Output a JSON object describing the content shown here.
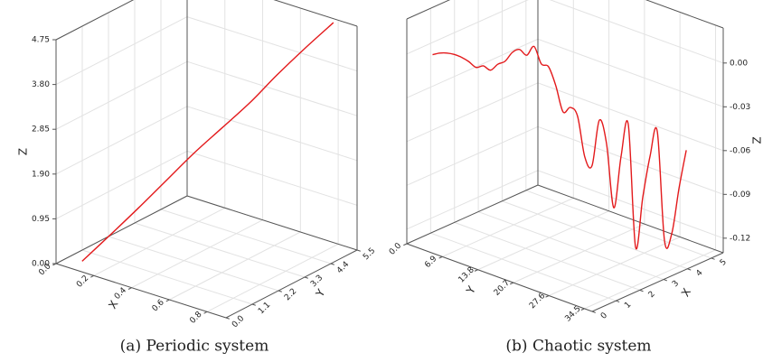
{
  "chart_data": [
    {
      "type": "line3d",
      "caption": "(a) Periodic system",
      "x_label": "X",
      "y_label": "Y",
      "z_label": "Z",
      "color": "#e31a1c",
      "grid": true,
      "x": [
        0.1,
        0.18,
        0.26,
        0.33,
        0.41,
        0.49,
        0.57,
        0.64,
        0.72,
        0.8
      ],
      "y": [
        0.3,
        0.86,
        1.41,
        1.97,
        2.52,
        3.08,
        3.63,
        4.19,
        4.74,
        5.3
      ],
      "z": [
        0.1,
        0.62,
        1.15,
        1.65,
        2.2,
        2.7,
        3.2,
        3.72,
        4.25,
        4.75
      ],
      "xlim": [
        0,
        0.9
      ],
      "xticks": [
        {
          "value": 0,
          "label": "0.0"
        },
        0.2,
        0.4,
        0.6,
        0.8
      ],
      "ylim": [
        0,
        5.5
      ],
      "yticks": [
        {
          "value": 0,
          "label": "0.0"
        },
        1.1,
        2.2,
        3.3,
        4.4,
        5.5
      ],
      "zlim": [
        0,
        4.75
      ],
      "zticks": [
        {
          "value": 0,
          "label": "0.00"
        },
        0.95,
        {
          "value": 1.9,
          "label": "1.90"
        },
        2.85,
        {
          "value": 3.8,
          "label": "3.80"
        },
        4.75
      ]
    },
    {
      "type": "line3d",
      "caption": "(b) Chaotic system",
      "x_label": "X",
      "y_label": "Y",
      "z_label": "Z",
      "color": "#e31a1c",
      "grid": true,
      "x": [
        0,
        0.14,
        0.28,
        0.42,
        0.56,
        0.7,
        0.84,
        0.98,
        1.12,
        1.26,
        1.4,
        1.54,
        1.68,
        1.82,
        1.96,
        2.1,
        2.24,
        2.38,
        2.52,
        2.66,
        2.8,
        2.94,
        3.08,
        3.22,
        3.36,
        3.5,
        3.64,
        3.78,
        3.92,
        4.06,
        4.2,
        4.34,
        4.48,
        4.62,
        4.76,
        4.9
      ],
      "y": [
        5,
        5.76,
        6.52,
        7.28,
        8.04,
        8.8,
        9.56,
        10.32,
        11.08,
        11.84,
        12.6,
        13.36,
        14.12,
        14.88,
        15.64,
        16.4,
        17.16,
        17.92,
        18.68,
        19.44,
        20.2,
        20.96,
        21.72,
        22.48,
        23.24,
        24,
        24.76,
        25.52,
        26.28,
        27.04,
        27.8,
        28.56,
        29.32,
        30.08,
        30.84,
        31.6
      ],
      "z": [
        0.006,
        0.007,
        0.007,
        0.006,
        0.004,
        0.001,
        -0.003,
        -0.002,
        -0.005,
        -0.001,
        0.001,
        0.007,
        0.009,
        0.005,
        0.011,
        -0.001,
        -0.003,
        -0.016,
        -0.034,
        -0.031,
        -0.037,
        -0.065,
        -0.071,
        -0.04,
        -0.056,
        -0.1,
        -0.065,
        -0.043,
        -0.127,
        -0.093,
        -0.065,
        -0.048,
        -0.123,
        -0.118,
        -0.087,
        -0.061
      ],
      "xlim": [
        0,
        5.5
      ],
      "xticks": [
        0,
        1,
        2,
        3,
        4,
        5
      ],
      "ylim": [
        0,
        36
      ],
      "yticks": [
        {
          "value": 0,
          "label": "0.0"
        },
        6.9,
        13.8,
        20.7,
        27.6,
        34.5
      ],
      "zlim": [
        -0.13,
        0.024
      ],
      "zticks": [
        {
          "value": 0,
          "label": "0.00"
        },
        -0.03,
        -0.06,
        -0.09,
        -0.12
      ]
    }
  ]
}
